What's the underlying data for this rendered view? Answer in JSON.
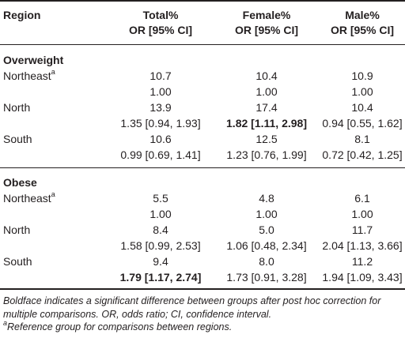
{
  "headers": {
    "region": "Region",
    "total_line1": "Total%",
    "total_line2": "OR [95% CI]",
    "female_line1": "Female%",
    "female_line2": "OR [95% CI]",
    "male_line1": "Male%",
    "male_line2": "OR [95% CI]"
  },
  "sections": [
    {
      "title": "Overweight",
      "rows": [
        {
          "region": "Northeast",
          "sup": "a",
          "total_pct": "10.7",
          "female_pct": "10.4",
          "male_pct": "10.9",
          "total_or": "1.00",
          "female_or": "1.00",
          "male_or": "1.00"
        },
        {
          "region": "North",
          "sup": "",
          "total_pct": "13.9",
          "female_pct": "17.4",
          "male_pct": "10.4",
          "total_or": "1.35 [0.94, 1.93]",
          "female_or": "1.82 [1.11, 2.98]",
          "male_or": "0.94 [0.55, 1.62]"
        },
        {
          "region": "South",
          "sup": "",
          "total_pct": "10.6",
          "female_pct": "12.5",
          "male_pct": "8.1",
          "total_or": "0.99 [0.69, 1.41]",
          "female_or": "1.23 [0.76, 1.99]",
          "male_or": "0.72 [0.42, 1.25]"
        }
      ]
    },
    {
      "title": "Obese",
      "rows": [
        {
          "region": "Northeast",
          "sup": "a",
          "total_pct": "5.5",
          "female_pct": "4.8",
          "male_pct": "6.1",
          "total_or": "1.00",
          "female_or": "1.00",
          "male_or": "1.00"
        },
        {
          "region": "North",
          "sup": "",
          "total_pct": "8.4",
          "female_pct": "5.0",
          "male_pct": "11.7",
          "total_or": "1.58 [0.99, 2.53]",
          "female_or": "1.06 [0.48, 2.34]",
          "male_or": "2.04 [1.13, 3.66]"
        },
        {
          "region": "South",
          "sup": "",
          "total_pct": "9.4",
          "female_pct": "8.0",
          "male_pct": "11.2",
          "total_or": "1.79 [1.17, 2.74]",
          "female_or": "1.73 [0.91, 3.28]",
          "male_or": "1.94 [1.09, 3.43]"
        }
      ]
    }
  ],
  "footnotes": {
    "note1": "Boldface indicates a significant difference between groups after post hoc correction for multiple comparisons. OR, odds ratio; CI, confidence interval.",
    "note2_sup": "a",
    "note2": "Reference group for comparisons between regions."
  }
}
